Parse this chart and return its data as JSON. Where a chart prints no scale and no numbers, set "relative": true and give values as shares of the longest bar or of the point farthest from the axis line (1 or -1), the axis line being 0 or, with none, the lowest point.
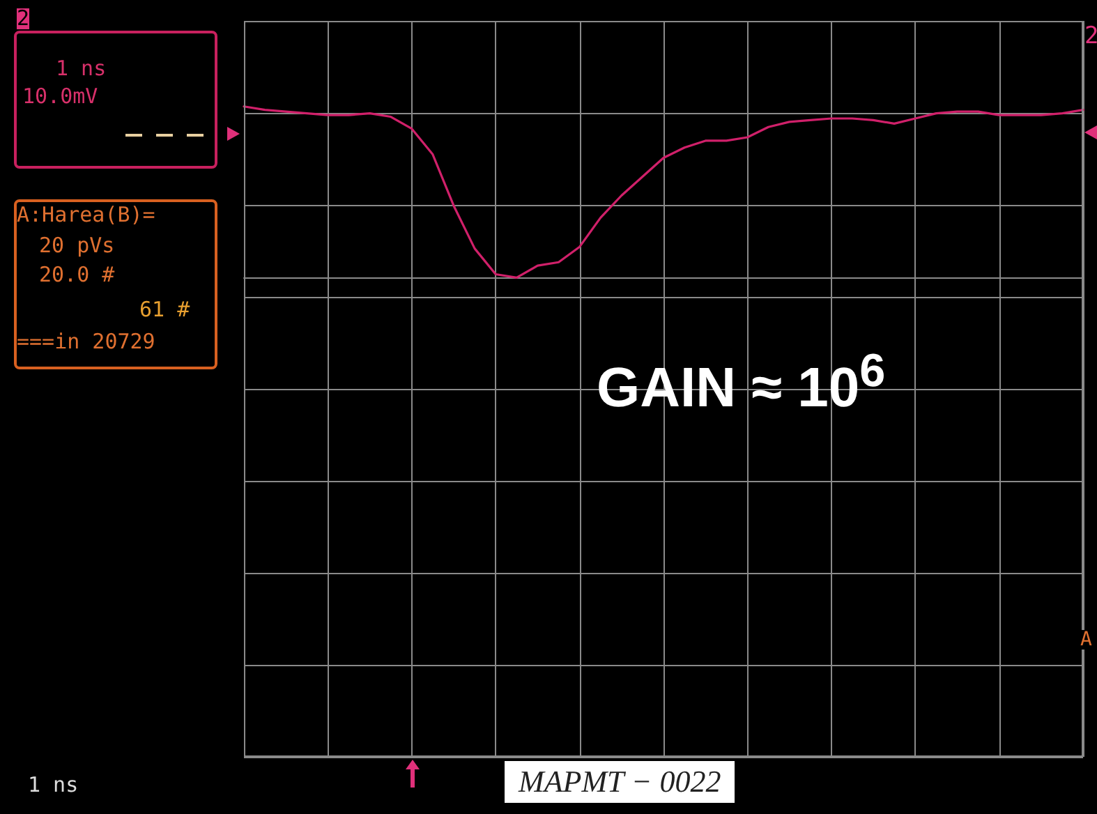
{
  "chart_data": {
    "type": "line",
    "relative": true,
    "grid": true,
    "marker": "none",
    "line_style": "solid",
    "categories": [
      null,
      null,
      null,
      null,
      null,
      null,
      null,
      null,
      null,
      null,
      null,
      null,
      null,
      null,
      null,
      null,
      null,
      null,
      null,
      null,
      null,
      null,
      null,
      null,
      null,
      null,
      null,
      null,
      null,
      null,
      null,
      null,
      null,
      null,
      null,
      null,
      null,
      null,
      null,
      null,
      null
    ],
    "series": [
      {
        "color": "#d0206a",
        "values": [
          1,
          0.98,
          0.97,
          0.96,
          0.95,
          0.95,
          0.96,
          0.94,
          0.87,
          0.72,
          0.42,
          0.17,
          0.02,
          0,
          0.07,
          0.09,
          0.18,
          0.35,
          0.48,
          0.59,
          0.7,
          0.76,
          0.8,
          0.8,
          0.82,
          0.88,
          0.91,
          0.92,
          0.93,
          0.93,
          0.92,
          0.9,
          0.93,
          0.96,
          0.97,
          0.97,
          0.95,
          0.95,
          0.95,
          0.96,
          0.98
        ]
      }
    ],
    "annotations": [
      "2",
      "1 ns",
      "10.0mV",
      "A:Harea(B)=",
      "20 pVs",
      "20.0 #",
      "61 #",
      "===in 20729",
      "1 ns",
      "MAPMT − 0022",
      "GAIN ≈ 10$^{6}$",
      "2",
      "A"
    ]
  }
}
